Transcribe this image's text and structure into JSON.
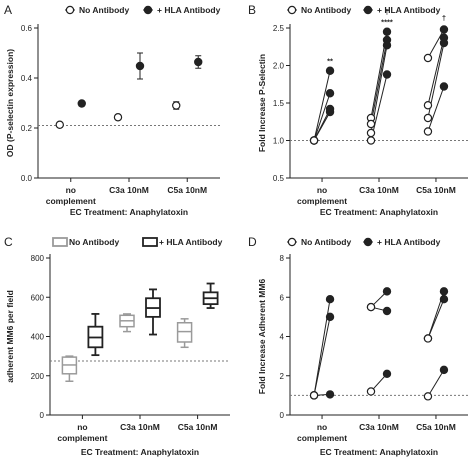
{
  "colors": {
    "ink": "#222222",
    "no_antibody_box": "#9a9a9a",
    "hla_box": "#222222",
    "reference_line": "#777777"
  },
  "chart_data": [
    {
      "panel": "A",
      "type": "scatter",
      "legend": [
        {
          "label": "No Antibody",
          "marker": "open-circle"
        },
        {
          "label": "+ HLA Antibody",
          "marker": "filled-circle"
        }
      ],
      "legend_placement": "top",
      "categories": [
        "no complement",
        "C3a 10nM",
        "C5a 10nM"
      ],
      "xlabel": "EC Treatment: Anaphylatoxin",
      "ylabel": "OD (P-selectin expression)",
      "ylim": [
        0,
        0.6
      ],
      "yticks": [
        0.0,
        0.2,
        0.4,
        0.6
      ],
      "yticklabels": [
        "0.0",
        "0.2",
        "0.4",
        "0.6"
      ],
      "reference_line_y": 0.21,
      "series": [
        {
          "name": "No Antibody",
          "values": [
            0.213,
            0.243,
            0.29
          ],
          "errors": [
            0.004,
            0.01,
            0.015
          ]
        },
        {
          "name": "+ HLA Antibody",
          "values": [
            0.298,
            0.448,
            0.464
          ],
          "errors": [
            0.01,
            0.052,
            0.025
          ]
        }
      ]
    },
    {
      "panel": "B",
      "type": "paired-scatter",
      "legend": [
        {
          "label": "No Antibody",
          "marker": "open-circle"
        },
        {
          "label": "+ HLA Antibody",
          "marker": "filled-circle"
        }
      ],
      "legend_placement": "top",
      "categories": [
        "no complement",
        "C3a 10nM",
        "C5a 10nM"
      ],
      "xlabel": "EC Treatment: Anaphylatoxin",
      "ylabel": "Fold Increase P-Selectin",
      "ylim": [
        0.5,
        2.5
      ],
      "yticks": [
        0.5,
        1.0,
        1.5,
        2.0,
        2.5
      ],
      "yticklabels": [
        "0.5",
        "1.0",
        "1.5",
        "2.0",
        "2.5"
      ],
      "reference_line_y": 1.0,
      "pairs": [
        {
          "category": "no complement",
          "no_antibody": [
            1.0,
            1.0,
            1.0,
            1.0
          ],
          "hla_antibody": [
            1.93,
            1.63,
            1.42,
            1.38
          ]
        },
        {
          "category": "C3a 10nM",
          "no_antibody": [
            1.3,
            1.22,
            1.1,
            1.0
          ],
          "hla_antibody": [
            2.45,
            2.34,
            2.27,
            1.88
          ]
        },
        {
          "category": "C5a 10nM",
          "no_antibody": [
            2.1,
            1.47,
            1.3,
            1.12
          ],
          "hla_antibody": [
            2.48,
            2.37,
            2.3,
            1.72
          ]
        }
      ],
      "annotations": [
        {
          "category": "no complement",
          "text": "**",
          "y": 2.03
        },
        {
          "category": "C3a 10nM",
          "text": "****",
          "y": 2.55
        },
        {
          "category": "C3a 10nM",
          "text": "†",
          "y": 2.68
        },
        {
          "category": "C5a 10nM",
          "text": "†",
          "y": 2.6
        }
      ]
    },
    {
      "panel": "C",
      "type": "box",
      "legend": [
        {
          "label": "No Antibody",
          "marker": "open-box-gray"
        },
        {
          "label": "+ HLA Antibody",
          "marker": "open-box-black"
        }
      ],
      "legend_placement": "top",
      "categories": [
        "no complement",
        "C3a 10nM",
        "C5a 10nM"
      ],
      "xlabel": "EC Treatment: Anaphylatoxin",
      "ylabel": "adherent MM6 per field",
      "ylim": [
        0,
        800
      ],
      "yticks": [
        0,
        200,
        400,
        600,
        800
      ],
      "yticklabels": [
        "0",
        "200",
        "400",
        "600",
        "800"
      ],
      "reference_line_y": 275,
      "series": [
        {
          "name": "No Antibody",
          "boxes": [
            {
              "min": 172,
              "q1": 210,
              "median": 255,
              "q3": 295,
              "max": 300
            },
            {
              "min": 425,
              "q1": 450,
              "median": 480,
              "q3": 508,
              "max": 515
            },
            {
              "min": 345,
              "q1": 372,
              "median": 425,
              "q3": 470,
              "max": 490
            }
          ]
        },
        {
          "name": "+ HLA Antibody",
          "boxes": [
            {
              "min": 305,
              "q1": 345,
              "median": 395,
              "q3": 450,
              "max": 515
            },
            {
              "min": 410,
              "q1": 500,
              "median": 545,
              "q3": 595,
              "max": 640
            },
            {
              "min": 545,
              "q1": 565,
              "median": 595,
              "q3": 625,
              "max": 670
            }
          ]
        }
      ]
    },
    {
      "panel": "D",
      "type": "paired-scatter",
      "legend": [
        {
          "label": "No Antibody",
          "marker": "open-circle"
        },
        {
          "label": "+ HLA Antibody",
          "marker": "filled-circle"
        }
      ],
      "legend_placement": "top",
      "categories": [
        "no complement",
        "C3a 10nM",
        "C5a 10nM"
      ],
      "xlabel": "EC Treatment: Anaphylatoxin",
      "ylabel": "Fold Increase Adherent MM6",
      "ylim": [
        0,
        8
      ],
      "yticks": [
        0,
        2,
        4,
        6,
        8
      ],
      "yticklabels": [
        "0",
        "2",
        "4",
        "6",
        "8"
      ],
      "reference_line_y": 1.0,
      "pairs": [
        {
          "category": "no complement",
          "no_antibody": [
            1.0,
            1.0,
            1.0
          ],
          "hla_antibody": [
            5.9,
            5.0,
            1.05
          ]
        },
        {
          "category": "C3a 10nM",
          "no_antibody": [
            5.5,
            5.5,
            1.2
          ],
          "hla_antibody": [
            6.3,
            5.3,
            2.1
          ]
        },
        {
          "category": "C5a 10nM",
          "no_antibody": [
            3.9,
            3.9,
            0.95
          ],
          "hla_antibody": [
            6.3,
            5.9,
            2.3
          ]
        }
      ],
      "annotations": []
    }
  ],
  "figure": {
    "panel_letters": [
      "A",
      "B",
      "C",
      "D"
    ]
  }
}
